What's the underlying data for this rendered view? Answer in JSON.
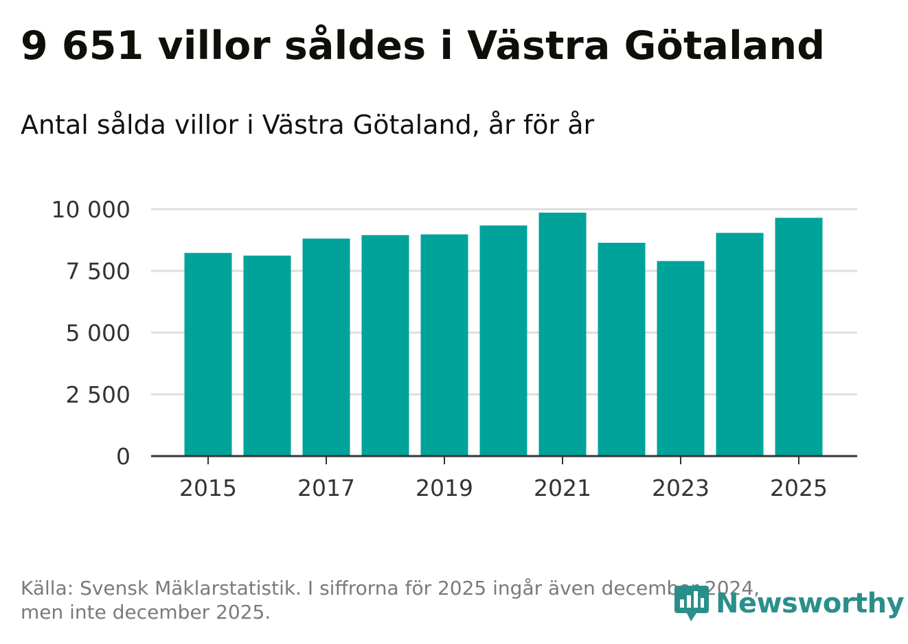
{
  "title": "9 651 villor såldes i Västra Götaland",
  "subtitle": "Antal sålda villor i Västra Götaland, år för år",
  "footer": {
    "line1": "Källa: Svensk Mäklarstatistik. I siffrorna för 2025 ingår även december 2024,",
    "line2": "men inte december 2025."
  },
  "brand": {
    "name": "Newsworthy",
    "color": "#2a8f8a"
  },
  "colors": {
    "bar": "#00a39a",
    "grid": "#dddddd",
    "axis": "#333333",
    "tick_text": "#333333"
  },
  "chart_data": {
    "type": "bar",
    "title": "Antal sålda villor i Västra Götaland, år för år",
    "xlabel": "",
    "ylabel": "",
    "categories": [
      "2015",
      "2016",
      "2017",
      "2018",
      "2019",
      "2020",
      "2021",
      "2022",
      "2023",
      "2024",
      "2025"
    ],
    "values": [
      8230,
      8120,
      8810,
      8950,
      8980,
      9340,
      9860,
      8640,
      7900,
      9040,
      9651
    ],
    "ylim": [
      0,
      10000
    ],
    "yticks": [
      0,
      2500,
      5000,
      7500,
      10000
    ],
    "ytick_labels": [
      "0",
      "2 500",
      "5 000",
      "7 500",
      "10 000"
    ],
    "xtick_labels": [
      "2015",
      "2017",
      "2019",
      "2021",
      "2023",
      "2025"
    ],
    "grid": true
  }
}
